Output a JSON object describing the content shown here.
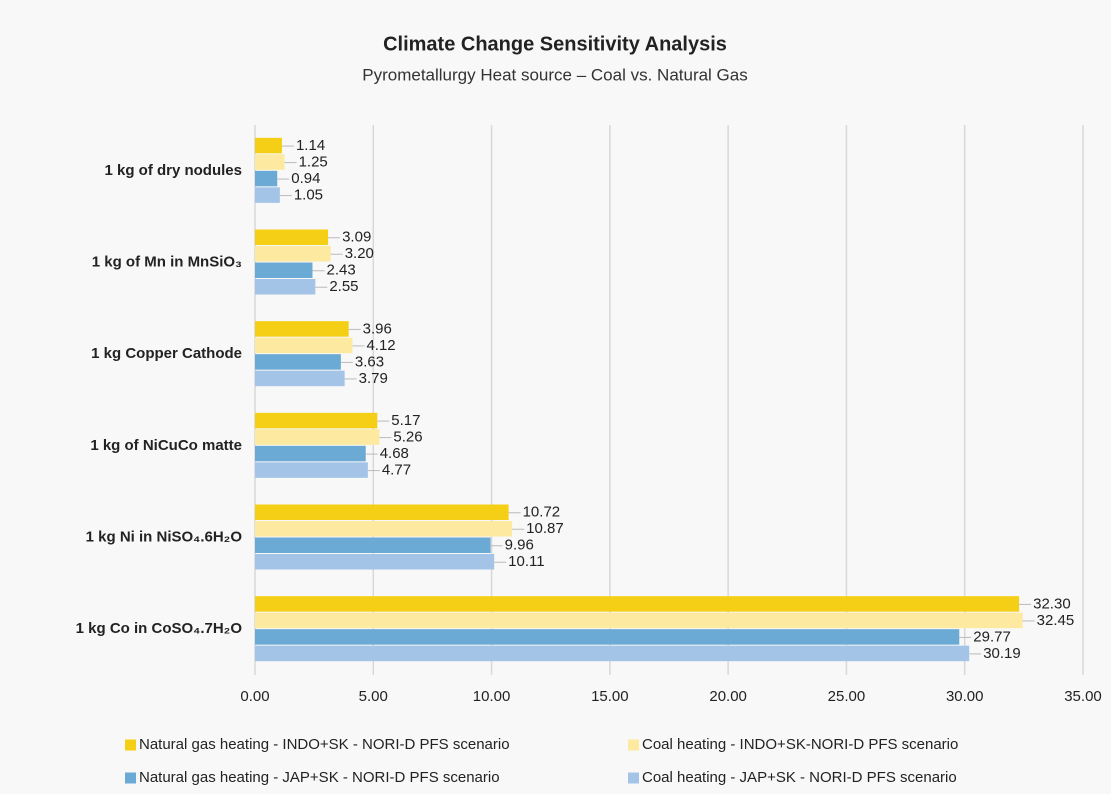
{
  "chart_data": {
    "type": "barh",
    "title": "Climate Change Sensitivity Analysis",
    "subtitle": "Pyrometallurgy Heat source – Coal vs. Natural Gas",
    "categories": [
      "1 kg of dry nodules",
      "1 kg of Mn in MnSiO₃",
      "1 kg Copper Cathode",
      "1 kg of NiCuCo matte",
      "1 kg Ni in NiSO₄.6H₂O",
      "1 kg Co in CoSO₄.7H₂O"
    ],
    "series": [
      {
        "name": "Natural gas heating - INDO+SK - NORI-D PFS scenario",
        "color": "#f5cf15",
        "values": [
          1.14,
          3.09,
          3.96,
          5.17,
          10.72,
          32.3
        ],
        "value_labels": [
          "1.14",
          "3.09",
          "3.96",
          "5.17",
          "10.72",
          "32.30"
        ]
      },
      {
        "name": "Coal heating - INDO+SK-NORI-D PFS scenario",
        "color": "#fde9a0",
        "values": [
          1.25,
          3.2,
          4.12,
          5.26,
          10.87,
          32.45
        ],
        "value_labels": [
          "1.25",
          "3.20",
          "4.12",
          "5.26",
          "10.87",
          "32.45"
        ]
      },
      {
        "name": "Natural gas heating - JAP+SK - NORI-D PFS scenario",
        "color": "#6baad4",
        "values": [
          0.94,
          2.43,
          3.63,
          4.68,
          9.96,
          29.77
        ],
        "value_labels": [
          "0.94",
          "2.43",
          "3.63",
          "4.68",
          "9.96",
          "29.77"
        ]
      },
      {
        "name": "Coal heating - JAP+SK - NORI-D PFS scenario",
        "color": "#a3c4e6",
        "values": [
          1.05,
          2.55,
          3.79,
          4.77,
          10.11,
          30.19
        ],
        "value_labels": [
          "1.05",
          "2.55",
          "3.79",
          "4.77",
          "10.11",
          "30.19"
        ]
      }
    ],
    "xlim": [
      0,
      35
    ],
    "xticks": [
      {
        "value": 0,
        "label": "0.00"
      },
      {
        "value": 5,
        "label": "5.00"
      },
      {
        "value": 10,
        "label": "10.00"
      },
      {
        "value": 15,
        "label": "15.00"
      },
      {
        "value": 20,
        "label": "20.00"
      },
      {
        "value": 25,
        "label": "25.00"
      },
      {
        "value": 30,
        "label": "30.00"
      },
      {
        "value": 35,
        "label": "35.00"
      }
    ],
    "grid": true
  }
}
